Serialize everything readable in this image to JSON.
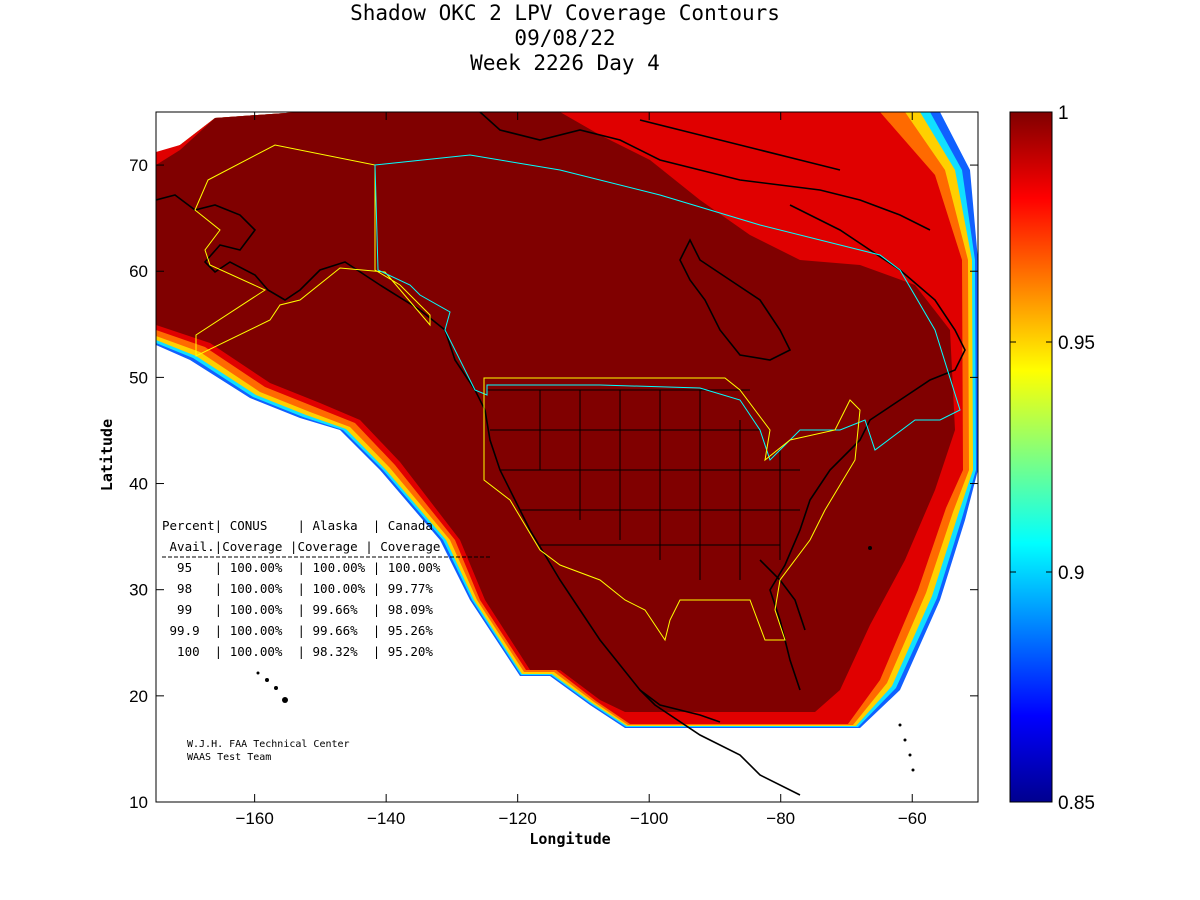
{
  "title": {
    "line1": "Shadow OKC 2 LPV Coverage Contours",
    "line2": "09/08/22",
    "line3": "Week 2226 Day 4"
  },
  "axes": {
    "xlabel": "Longitude",
    "ylabel": "Latitude",
    "xticks": [
      -160,
      -140,
      -120,
      -100,
      -80,
      -60
    ],
    "yticks": [
      10,
      20,
      30,
      40,
      50,
      60,
      70
    ],
    "xlim": [
      -175,
      -50
    ],
    "ylim": [
      10,
      75
    ]
  },
  "colorbar": {
    "range": [
      0.85,
      1
    ],
    "ticks": [
      "1",
      "0.95",
      "0.9",
      "0.85"
    ],
    "colormap": "jet"
  },
  "coverage_table": {
    "header1": [
      "Percent",
      "CONUS",
      "Alaska",
      "Canada"
    ],
    "header2": [
      "Avail.",
      "Coverage",
      "Coverage",
      "Coverage"
    ],
    "rows": [
      {
        "percent": "95",
        "conus": "100.00%",
        "alaska": "100.00%",
        "canada": "100.00%"
      },
      {
        "percent": "98",
        "conus": "100.00%",
        "alaska": "100.00%",
        "canada": "99.77%"
      },
      {
        "percent": "99",
        "conus": "100.00%",
        "alaska": "99.66%",
        "canada": "98.09%"
      },
      {
        "percent": "99.9",
        "conus": "100.00%",
        "alaska": "99.66%",
        "canada": "95.26%"
      },
      {
        "percent": "100",
        "conus": "100.00%",
        "alaska": "98.32%",
        "canada": "95.20%"
      }
    ]
  },
  "credits": {
    "line1": "W.J.H. FAA Technical Center",
    "line2": "WAAS Test Team"
  },
  "colors": {
    "full_coverage": "#800000",
    "service_volume_us": "#ffff00",
    "service_volume_canada": "#00ffff",
    "coastline": "#000000"
  }
}
